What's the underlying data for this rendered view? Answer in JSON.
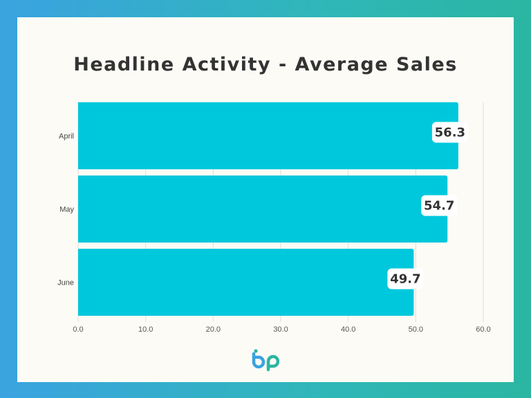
{
  "title": "Headline Activity - Average Sales",
  "colors": {
    "bar": "#00c8dc",
    "label_bg": "#ffffff",
    "text": "#333333",
    "grid": "#dedede"
  },
  "logo_icon": "bp-logo-icon",
  "chart_data": {
    "type": "bar",
    "orientation": "horizontal",
    "title": "Headline Activity - Average Sales",
    "categories": [
      "April",
      "May",
      "June"
    ],
    "values": [
      56.3,
      54.7,
      49.7
    ],
    "data_labels": [
      "56.3",
      "54.7",
      "49.7"
    ],
    "xlim": [
      0,
      60
    ],
    "x_ticks": [
      "0.0",
      "10.0",
      "20.0",
      "30.0",
      "40.0",
      "50.0",
      "60.0"
    ],
    "xlabel": "",
    "ylabel": "",
    "grid": true,
    "legend": false
  }
}
